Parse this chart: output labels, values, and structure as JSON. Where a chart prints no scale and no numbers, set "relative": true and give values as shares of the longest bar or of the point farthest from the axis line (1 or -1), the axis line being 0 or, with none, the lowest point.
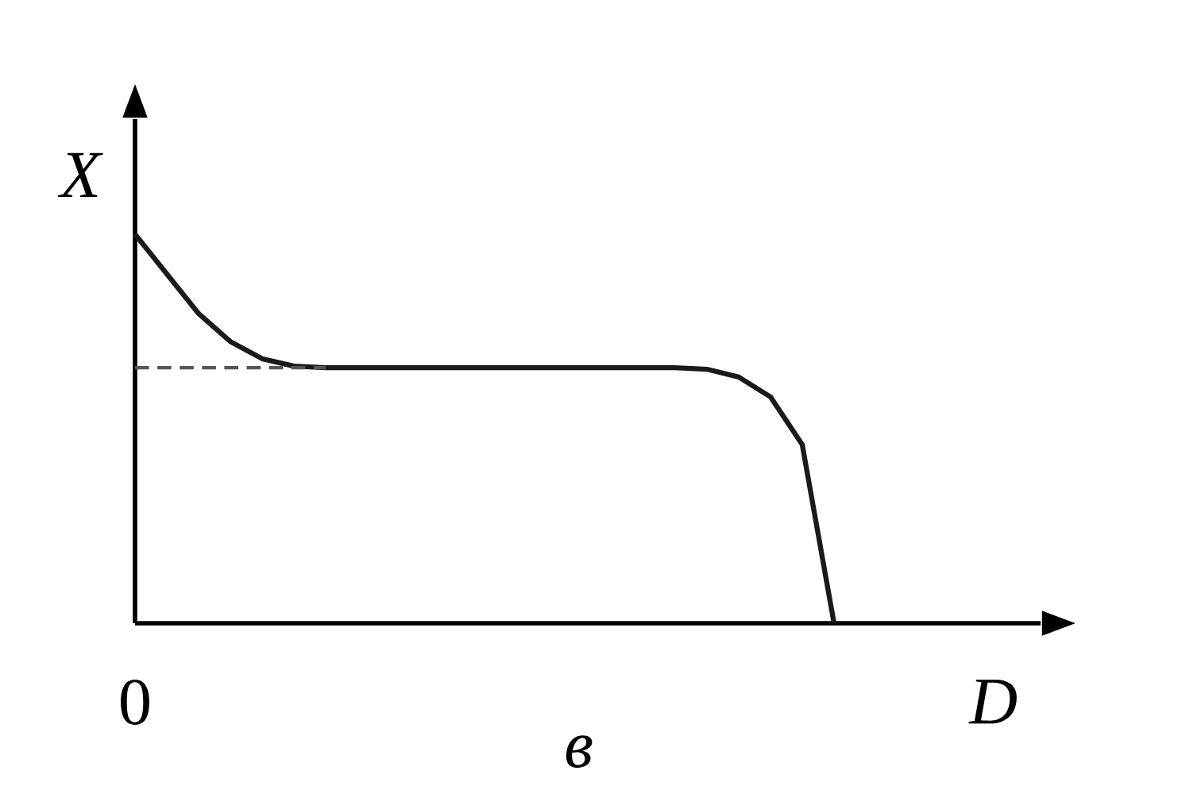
{
  "chart_data": {
    "type": "line",
    "relative": true,
    "xlabel": "D",
    "ylabel": "X",
    "annotations": [
      "0",
      "в"
    ],
    "categories": [
      null,
      null,
      null,
      null,
      null,
      null,
      null,
      null,
      null,
      null,
      null,
      null,
      null,
      null,
      null,
      null,
      null,
      null,
      null,
      null,
      null,
      null,
      null
    ],
    "series": [
      {
        "color": "#1a1a1a",
        "values": [
          1,
          0.898,
          0.796,
          0.724,
          0.68,
          0.661,
          0.657,
          0.657,
          0.657,
          0.657,
          0.657,
          0.657,
          0.657,
          0.657,
          0.657,
          0.657,
          0.657,
          0.657,
          0.653,
          0.633,
          0.582,
          0.459,
          0
        ]
      }
    ],
    "ref_lines": [
      {
        "axis": "y",
        "value": 0.657,
        "line_style": "dashed",
        "color": "#555555"
      }
    ]
  }
}
